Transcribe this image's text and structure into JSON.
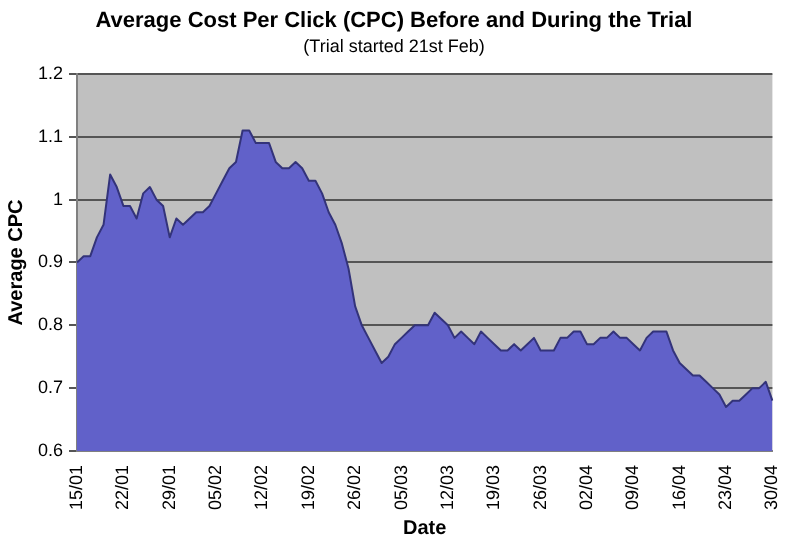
{
  "chart_data": {
    "type": "area",
    "title": "Average Cost Per Click (CPC) Before and During the Trial",
    "subtitle": "(Trial started 21st Feb)",
    "xlabel": "Date",
    "ylabel": "Average CPC",
    "categories": [
      "15/01",
      null,
      null,
      null,
      null,
      null,
      null,
      "22/01",
      null,
      null,
      null,
      null,
      null,
      null,
      "29/01",
      null,
      null,
      null,
      null,
      null,
      null,
      "05/02",
      null,
      null,
      null,
      null,
      null,
      null,
      "12/02",
      null,
      null,
      null,
      null,
      null,
      null,
      "19/02",
      null,
      null,
      null,
      null,
      null,
      null,
      "26/02",
      null,
      null,
      null,
      null,
      null,
      null,
      "05/03",
      null,
      null,
      null,
      null,
      null,
      null,
      "12/03",
      null,
      null,
      null,
      null,
      null,
      null,
      "19/03",
      null,
      null,
      null,
      null,
      null,
      null,
      "26/03",
      null,
      null,
      null,
      null,
      null,
      null,
      "02/04",
      null,
      null,
      null,
      null,
      null,
      null,
      "09/04",
      null,
      null,
      null,
      null,
      null,
      null,
      "16/04",
      null,
      null,
      null,
      null,
      null,
      null,
      "23/04",
      null,
      null,
      null,
      null,
      null,
      null,
      "30/04"
    ],
    "series": [
      {
        "color": "#6161c9",
        "values": [
          0.9,
          0.91,
          0.91,
          0.94,
          0.96,
          1.04,
          1.02,
          0.99,
          0.99,
          0.97,
          1.01,
          1.02,
          1.0,
          0.99,
          0.94,
          0.97,
          0.96,
          0.97,
          0.98,
          0.98,
          0.99,
          1.01,
          1.03,
          1.05,
          1.06,
          1.11,
          1.11,
          1.09,
          1.09,
          1.09,
          1.06,
          1.05,
          1.05,
          1.06,
          1.05,
          1.03,
          1.03,
          1.01,
          0.98,
          0.96,
          0.93,
          0.89,
          0.83,
          0.8,
          0.78,
          0.76,
          0.74,
          0.75,
          0.77,
          0.78,
          0.79,
          0.8,
          0.8,
          0.8,
          0.82,
          0.81,
          0.8,
          0.78,
          0.79,
          0.78,
          0.77,
          0.79,
          0.78,
          0.77,
          0.76,
          0.76,
          0.77,
          0.76,
          0.77,
          0.78,
          0.76,
          0.76,
          0.76,
          0.78,
          0.78,
          0.79,
          0.79,
          0.77,
          0.77,
          0.78,
          0.78,
          0.79,
          0.78,
          0.78,
          0.77,
          0.76,
          0.78,
          0.79,
          0.79,
          0.79,
          0.76,
          0.74,
          0.73,
          0.72,
          0.72,
          0.71,
          0.7,
          0.69,
          0.67,
          0.68,
          0.68,
          0.69,
          0.7,
          0.7,
          0.71,
          0.68
        ]
      }
    ],
    "ylim": [
      0.6,
      1.2
    ],
    "yticks": [
      0.6,
      0.7,
      0.8,
      0.9,
      1,
      1.1,
      1.2
    ],
    "grid": "y",
    "legend": false
  }
}
